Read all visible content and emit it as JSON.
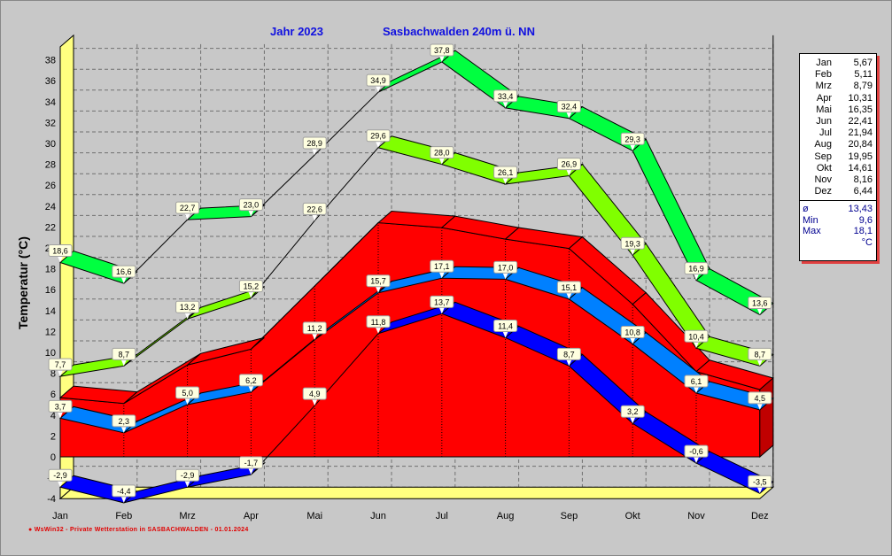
{
  "header": {
    "year": "Jahr  2023",
    "station": "Sasbachwalden  240m ü. NN"
  },
  "footer": "● WsWin32  -  Private Wetterstation in SASBACHWALDEN  -    01.01.2024",
  "legend": {
    "months": [
      {
        "m": "Jan",
        "v": "5,67"
      },
      {
        "m": "Feb",
        "v": "5,11"
      },
      {
        "m": "Mrz",
        "v": "8,79"
      },
      {
        "m": "Apr",
        "v": "10,31"
      },
      {
        "m": "Mai",
        "v": "16,35"
      },
      {
        "m": "Jun",
        "v": "22,41"
      },
      {
        "m": "Jul",
        "v": "21,94"
      },
      {
        "m": "Aug",
        "v": "20,84"
      },
      {
        "m": "Sep",
        "v": "19,95"
      },
      {
        "m": "Okt",
        "v": "14,61"
      },
      {
        "m": "Nov",
        "v": "8,16"
      },
      {
        "m": "Dez",
        "v": "6,44"
      }
    ],
    "stats": [
      {
        "k": "ø",
        "v": "13,43"
      },
      {
        "k": "Min",
        "v": "9,6"
      },
      {
        "k": "Max",
        "v": "18,1"
      },
      {
        "k": "",
        "v": "°C"
      }
    ]
  },
  "chart_data": {
    "type": "area",
    "title": "Jahr 2023  Sasbachwalden 240m ü. NN",
    "ylabel": "Temperatur  (°C)",
    "xlabel": "",
    "ylim": [
      -4,
      38
    ],
    "yticks": [
      -4,
      -2,
      0,
      2,
      4,
      6,
      8,
      10,
      12,
      14,
      16,
      18,
      20,
      22,
      24,
      26,
      28,
      30,
      32,
      34,
      36,
      38
    ],
    "grid": true,
    "categories": [
      "Jan",
      "Feb",
      "Mrz",
      "Apr",
      "Mai",
      "Jun",
      "Jul",
      "Aug",
      "Sep",
      "Okt",
      "Nov",
      "Dez"
    ],
    "series": [
      {
        "id": "red-area",
        "type": "area",
        "color": "#ff0000",
        "values": [
          5.67,
          5.11,
          8.79,
          10.31,
          16.35,
          22.41,
          21.94,
          20.84,
          19.95,
          14.61,
          8.16,
          6.44
        ]
      },
      {
        "id": "green-band",
        "type": "ribbon",
        "color": "#00ff40",
        "values": [
          18.6,
          16.6,
          22.7,
          23.0,
          28.9,
          34.9,
          37.8,
          33.4,
          32.4,
          29.3,
          16.9,
          13.6
        ]
      },
      {
        "id": "yellowgreen-band",
        "type": "ribbon",
        "color": "#80ff00",
        "values": [
          7.7,
          8.7,
          13.2,
          15.2,
          22.6,
          29.6,
          28.0,
          26.1,
          26.9,
          19.3,
          10.4,
          8.7
        ]
      },
      {
        "id": "lightblue-band",
        "type": "ribbon",
        "color": "#0080ff",
        "values": [
          3.7,
          2.3,
          5.0,
          6.2,
          11.2,
          15.7,
          17.1,
          17.0,
          15.1,
          10.8,
          6.1,
          4.5
        ]
      },
      {
        "id": "blue-band",
        "type": "ribbon",
        "color": "#0000ff",
        "values": [
          -2.9,
          -4.4,
          -2.9,
          -1.7,
          4.9,
          11.8,
          13.7,
          11.4,
          8.7,
          3.2,
          -0.6,
          -3.5
        ]
      }
    ]
  }
}
